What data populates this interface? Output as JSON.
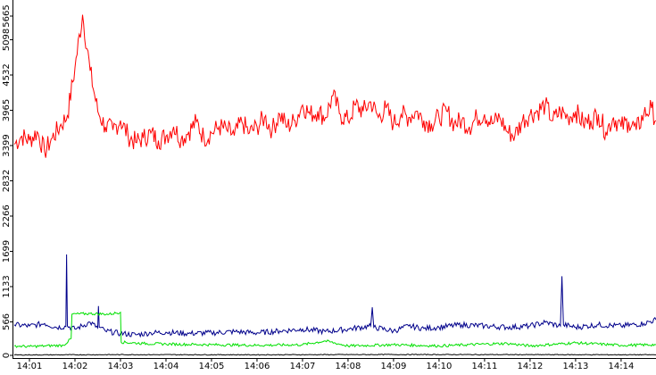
{
  "chart_data": {
    "type": "line",
    "title": "",
    "xlabel": "",
    "ylabel": "",
    "ylim": [
      0,
      5665
    ],
    "yticks": [
      "0",
      "566",
      "1133",
      "1699",
      "2266",
      "2832",
      "3399",
      "3965",
      "4532",
      "5098",
      "5665"
    ],
    "ytick_values": [
      0,
      566,
      1133,
      1699,
      2266,
      2832,
      3399,
      3965,
      4532,
      5098,
      5665
    ],
    "xlim": [
      "14:00:40",
      "14:14:46"
    ],
    "xticks": [
      "14:01",
      "14:02",
      "14:03",
      "14:04",
      "14:05",
      "14:06",
      "14:07",
      "14:08",
      "14:09",
      "14:10",
      "14:11",
      "14:12",
      "14:13",
      "14:14"
    ],
    "grid": false,
    "legend": "none",
    "series": [
      {
        "color": "#ff0000",
        "x": [
          "14:00:40",
          "14:00:50",
          "14:01:00",
          "14:01:10",
          "14:01:20",
          "14:01:30",
          "14:01:40",
          "14:01:50",
          "14:02:00",
          "14:02:10",
          "14:02:20",
          "14:02:30",
          "14:02:40",
          "14:02:50",
          "14:03:00",
          "14:03:10",
          "14:03:20",
          "14:03:30",
          "14:03:40",
          "14:03:50",
          "14:04:00",
          "14:04:10",
          "14:04:20",
          "14:04:30",
          "14:04:40",
          "14:04:50",
          "14:05:00",
          "14:05:10",
          "14:05:20",
          "14:05:30",
          "14:05:40",
          "14:05:50",
          "14:06:00",
          "14:06:10",
          "14:06:20",
          "14:06:30",
          "14:06:40",
          "14:06:50",
          "14:07:00",
          "14:07:10",
          "14:07:20",
          "14:07:30",
          "14:07:40",
          "14:07:50",
          "14:08:00",
          "14:08:10",
          "14:08:20",
          "14:08:30",
          "14:08:40",
          "14:08:50",
          "14:09:00",
          "14:09:10",
          "14:09:20",
          "14:09:30",
          "14:09:40",
          "14:09:50",
          "14:10:00",
          "14:10:10",
          "14:10:20",
          "14:10:30",
          "14:10:40",
          "14:10:50",
          "14:11:00",
          "14:11:10",
          "14:11:20",
          "14:11:30",
          "14:11:40",
          "14:11:50",
          "14:12:00",
          "14:12:10",
          "14:12:20",
          "14:12:30",
          "14:12:40",
          "14:12:50",
          "14:13:00",
          "14:13:10",
          "14:13:20",
          "14:13:30",
          "14:13:40",
          "14:13:50",
          "14:14:00",
          "14:14:10",
          "14:14:20",
          "14:14:30",
          "14:14:40",
          "14:14:46"
        ],
        "values": [
          3420,
          3550,
          3480,
          3620,
          3300,
          3520,
          3700,
          3880,
          4650,
          5500,
          4600,
          3950,
          3700,
          3650,
          3800,
          3560,
          3450,
          3520,
          3600,
          3480,
          3550,
          3700,
          3500,
          3620,
          3780,
          3520,
          3600,
          3700,
          3650,
          3560,
          3780,
          3600,
          3700,
          3850,
          3650,
          3900,
          3700,
          3800,
          4050,
          3900,
          3950,
          3850,
          4200,
          3900,
          3800,
          4050,
          3950,
          4100,
          3850,
          4000,
          3750,
          3900,
          3850,
          3950,
          3800,
          3750,
          3850,
          3950,
          3750,
          3800,
          3700,
          3850,
          3900,
          3750,
          3850,
          3620,
          3560,
          3800,
          3900,
          3950,
          4050,
          3800,
          3950,
          3850,
          3950,
          3760,
          3800,
          3900,
          3620,
          3850,
          3700,
          3780,
          3650,
          3900,
          4000,
          3800
        ]
      },
      {
        "color": "#00008b",
        "x": [
          "14:00:40",
          "14:01:00",
          "14:01:20",
          "14:01:35",
          "14:01:48",
          "14:01:49",
          "14:01:50",
          "14:02:00",
          "14:02:20",
          "14:02:30",
          "14:02:31",
          "14:02:32",
          "14:02:40",
          "14:03:00",
          "14:03:20",
          "14:03:40",
          "14:04:00",
          "14:04:30",
          "14:05:00",
          "14:05:30",
          "14:06:00",
          "14:06:30",
          "14:07:00",
          "14:07:30",
          "14:08:00",
          "14:08:30",
          "14:08:32",
          "14:08:34",
          "14:09:00",
          "14:09:20",
          "14:09:40",
          "14:10:00",
          "14:10:30",
          "14:11:00",
          "14:11:30",
          "14:12:00",
          "14:12:20",
          "14:12:40",
          "14:12:42",
          "14:12:44",
          "14:13:00",
          "14:13:30",
          "14:14:00",
          "14:14:30",
          "14:14:46"
        ],
        "values": [
          520,
          500,
          540,
          480,
          490,
          1650,
          500,
          450,
          560,
          470,
          820,
          480,
          420,
          380,
          360,
          390,
          400,
          380,
          390,
          410,
          390,
          420,
          450,
          410,
          450,
          500,
          800,
          480,
          420,
          500,
          460,
          480,
          520,
          500,
          480,
          500,
          560,
          500,
          1300,
          520,
          480,
          520,
          500,
          540,
          600
        ]
      },
      {
        "color": "#00e000",
        "x": [
          "14:00:40",
          "14:01:00",
          "14:01:20",
          "14:01:45",
          "14:01:55",
          "14:01:56",
          "14:02:20",
          "14:02:45",
          "14:03:00",
          "14:03:01",
          "14:03:30",
          "14:04:00",
          "14:05:00",
          "14:06:00",
          "14:07:00",
          "14:07:30",
          "14:08:00",
          "14:09:00",
          "14:10:00",
          "14:11:00",
          "14:11:30",
          "14:12:00",
          "14:13:00",
          "14:14:00",
          "14:14:46"
        ],
        "values": [
          180,
          170,
          180,
          190,
          300,
          690,
          700,
          690,
          720,
          240,
          220,
          210,
          200,
          190,
          200,
          260,
          180,
          200,
          180,
          210,
          220,
          180,
          230,
          190,
          200
        ]
      },
      {
        "color": "#000000",
        "x": [
          "14:00:40",
          "14:03:00",
          "14:06:00",
          "14:09:00",
          "14:12:00",
          "14:14:46"
        ],
        "values": [
          35,
          40,
          38,
          42,
          40,
          38
        ]
      }
    ]
  }
}
